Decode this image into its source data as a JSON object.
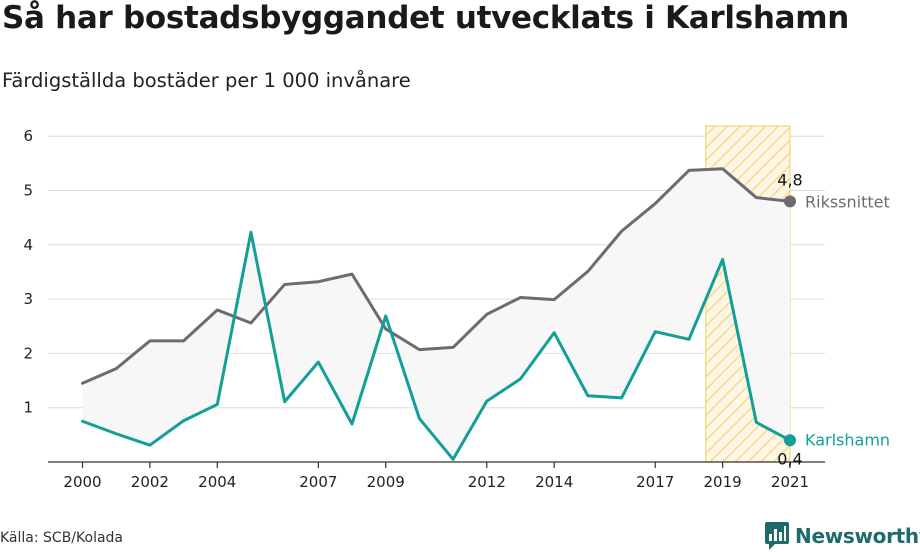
{
  "header": {
    "title": "Så har bostadsbyggandet utvecklats i Karlshamn",
    "subtitle": "Färdigställda bostäder per 1 000 invånare"
  },
  "footer": {
    "source": "Källa: SCB/Kolada",
    "brand": "Newsworthy"
  },
  "colors": {
    "riket": "#6f6a70",
    "karlshamn": "#12a096",
    "band_fill": "#f7f7f7",
    "highlight": "#f6cf6a",
    "grid": "#dcdcdc",
    "brand": "#1d6b6b"
  },
  "chart_data": {
    "type": "line",
    "x": [
      2000,
      2001,
      2002,
      2003,
      2004,
      2005,
      2006,
      2007,
      2008,
      2009,
      2010,
      2011,
      2012,
      2013,
      2014,
      2015,
      2016,
      2017,
      2018,
      2019,
      2020,
      2021
    ],
    "series": [
      {
        "name": "Rikssnittet",
        "values": [
          1.45,
          1.72,
          2.23,
          2.23,
          2.8,
          2.56,
          3.27,
          3.32,
          3.46,
          2.45,
          2.07,
          2.11,
          2.72,
          3.03,
          2.99,
          3.51,
          4.25,
          4.76,
          5.37,
          5.4,
          4.87,
          4.8
        ]
      },
      {
        "name": "Karlshamn",
        "values": [
          0.75,
          0.52,
          0.31,
          0.76,
          1.06,
          4.23,
          1.11,
          1.84,
          0.7,
          2.69,
          0.8,
          0.05,
          1.12,
          1.53,
          2.38,
          1.22,
          1.18,
          2.4,
          2.26,
          3.73,
          0.73,
          0.4
        ]
      }
    ],
    "x_tick_labels": [
      "2000",
      "2002",
      "2004",
      "2007",
      "2009",
      "2012",
      "2014",
      "2017",
      "2019",
      "2021"
    ],
    "y_ticks": [
      1,
      2,
      3,
      4,
      5,
      6
    ],
    "ylim": [
      0,
      6.2
    ],
    "highlight_range": [
      2018.5,
      2021
    ],
    "end_labels": {
      "riket_value": "4,8",
      "karlshamn_value": "0,4"
    },
    "grid": true,
    "legend": "none"
  }
}
